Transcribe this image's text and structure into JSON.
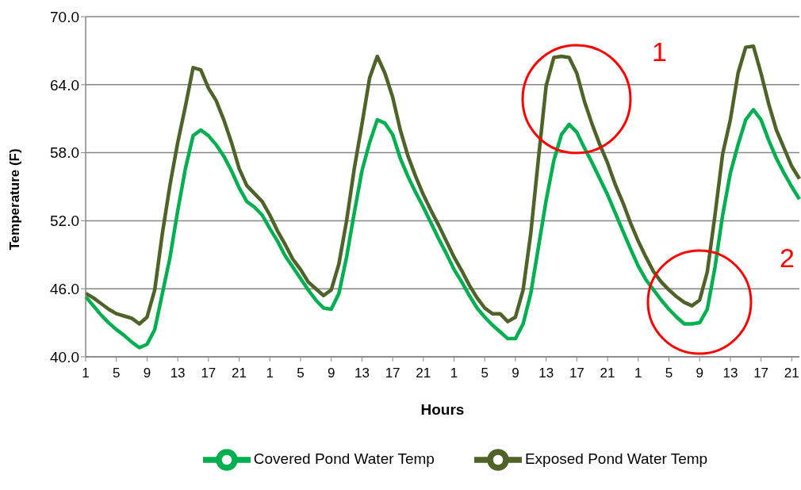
{
  "chart_data": {
    "type": "line",
    "xlabel": "Hours",
    "ylabel": "Temperature (F)",
    "categories": [
      "1",
      null,
      null,
      null,
      "5",
      null,
      null,
      null,
      "9",
      null,
      null,
      null,
      "13",
      null,
      null,
      null,
      "17",
      null,
      null,
      null,
      "21",
      null,
      null,
      null,
      "1",
      null,
      null,
      null,
      "5",
      null,
      null,
      null,
      "9",
      null,
      null,
      null,
      "13",
      null,
      null,
      null,
      "17",
      null,
      null,
      null,
      "21",
      null,
      null,
      null,
      "1",
      null,
      null,
      null,
      "5",
      null,
      null,
      null,
      "9",
      null,
      null,
      null,
      "13",
      null,
      null,
      null,
      "17",
      null,
      null,
      null,
      "21",
      null,
      null,
      null,
      "1",
      null,
      null,
      null,
      "5",
      null,
      null,
      null,
      "9",
      null,
      null,
      null,
      "13",
      null,
      null,
      null,
      "17",
      null,
      null,
      null,
      "21",
      null
    ],
    "series": [
      {
        "name": "Covered Pond Water Temp",
        "color": "#00b050",
        "values": [
          45.3,
          44.5,
          43.7,
          43.0,
          42.4,
          41.9,
          41.3,
          40.8,
          41.1,
          42.4,
          45.6,
          48.8,
          52.9,
          56.6,
          59.5,
          60.0,
          59.5,
          58.7,
          57.7,
          56.4,
          54.9,
          53.7,
          53.2,
          52.5,
          51.3,
          50.2,
          48.9,
          47.9,
          46.9,
          45.9,
          45.0,
          44.3,
          44.2,
          45.6,
          48.8,
          52.7,
          56.4,
          58.9,
          60.9,
          60.6,
          59.6,
          57.5,
          55.9,
          54.5,
          53.2,
          51.8,
          50.4,
          49.1,
          47.7,
          46.6,
          45.4,
          44.3,
          43.5,
          42.8,
          42.2,
          41.6,
          41.6,
          42.9,
          45.6,
          49.7,
          53.8,
          57.3,
          59.6,
          60.5,
          59.8,
          58.4,
          57.1,
          55.7,
          54.3,
          52.7,
          51.1,
          49.5,
          48.0,
          46.8,
          45.9,
          45.0,
          44.2,
          43.5,
          42.9,
          42.9,
          43.0,
          44.2,
          47.9,
          52.5,
          56.2,
          58.7,
          60.9,
          61.8,
          60.9,
          59.1,
          57.5,
          56.2,
          55.0,
          53.9
        ]
      },
      {
        "name": "Exposed Pond Water Temp",
        "color": "#4f6228",
        "values": [
          45.6,
          45.2,
          44.7,
          44.2,
          43.8,
          43.6,
          43.4,
          42.9,
          43.5,
          45.9,
          50.9,
          55.2,
          58.9,
          62.1,
          65.5,
          65.3,
          63.7,
          62.6,
          60.9,
          58.9,
          56.6,
          55.1,
          54.4,
          53.7,
          52.5,
          51.1,
          49.9,
          48.6,
          47.7,
          46.6,
          46.0,
          45.4,
          45.9,
          48.2,
          52.0,
          56.6,
          60.5,
          64.6,
          66.5,
          65.0,
          62.9,
          60.0,
          57.7,
          55.9,
          54.3,
          52.9,
          51.6,
          50.2,
          48.8,
          47.6,
          46.3,
          45.2,
          44.3,
          43.8,
          43.8,
          43.1,
          43.5,
          45.9,
          50.9,
          57.5,
          63.9,
          66.4,
          66.5,
          66.4,
          65.0,
          62.5,
          60.5,
          58.7,
          57.1,
          55.2,
          53.6,
          51.8,
          50.2,
          48.8,
          47.5,
          46.6,
          45.9,
          45.3,
          44.8,
          44.5,
          45.0,
          47.5,
          52.5,
          57.9,
          60.9,
          65.0,
          67.3,
          67.4,
          65.0,
          62.3,
          60.0,
          58.4,
          56.8,
          55.7
        ]
      }
    ],
    "ylim": [
      40,
      70
    ],
    "yticks": [
      {
        "value": 40,
        "label": "40.0"
      },
      {
        "value": 46,
        "label": "46.0"
      },
      {
        "value": 52,
        "label": "52.0"
      },
      {
        "value": 58,
        "label": "58.0"
      },
      {
        "value": 64,
        "label": "64.0"
      },
      {
        "value": 70,
        "label": "70.0"
      }
    ],
    "grid": "y",
    "legend": "bottom",
    "marker": "none",
    "line_style": "solid",
    "annotations": [
      "1",
      "2"
    ]
  }
}
